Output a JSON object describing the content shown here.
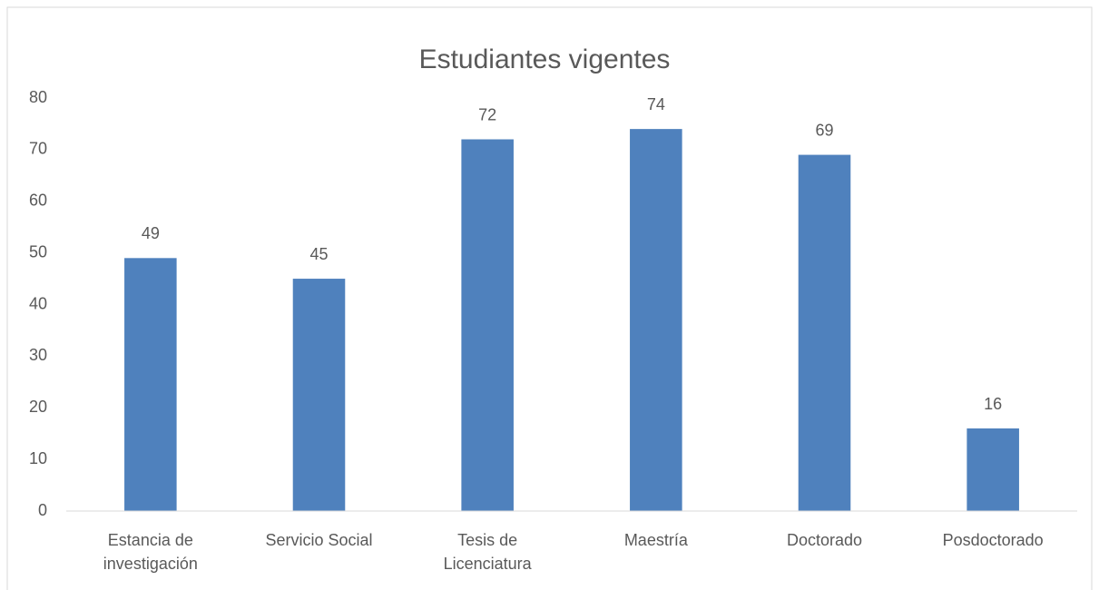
{
  "chart_data": {
    "type": "bar",
    "title": "Estudiantes vigentes",
    "categories": [
      "Estancia de investigación",
      "Servicio Social",
      "Tesis de Licenciatura",
      "Maestría",
      "Doctorado",
      "Posdoctorado"
    ],
    "values": [
      49,
      45,
      72,
      74,
      69,
      16
    ],
    "color": "#4f81bd",
    "ylim": [
      0,
      80
    ],
    "yticks": [
      0,
      10,
      20,
      30,
      40,
      50,
      60,
      70,
      80
    ],
    "grid": false
  }
}
